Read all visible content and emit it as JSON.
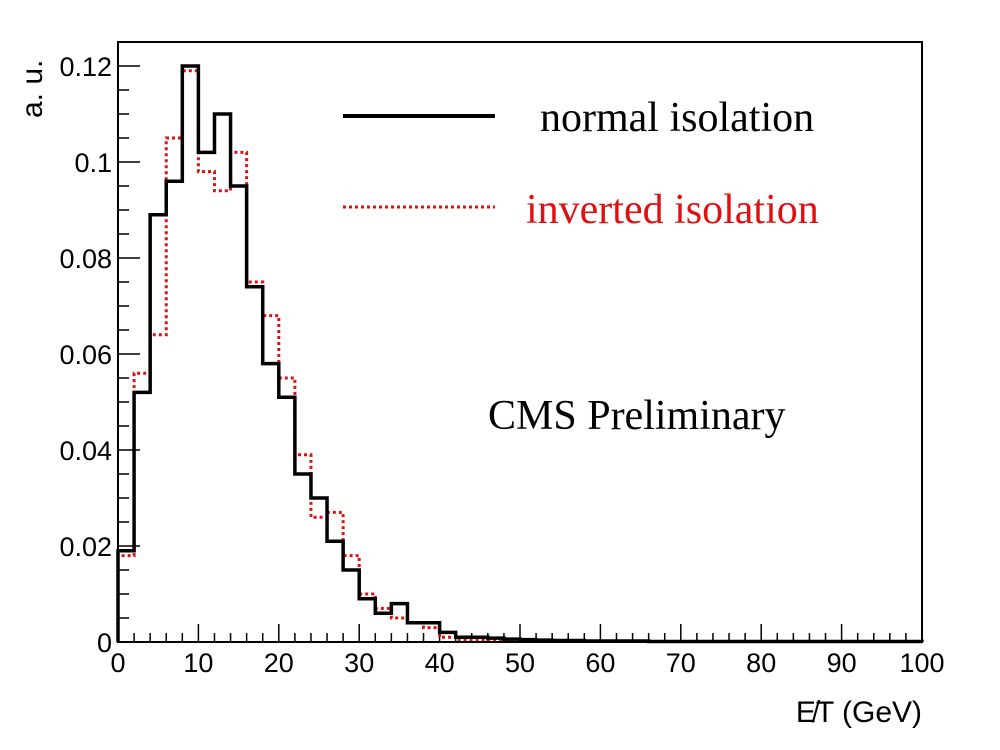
{
  "chart_data": {
    "type": "line",
    "step": true,
    "title": "",
    "xlabel": "E̸T  (GeV)",
    "ylabel": "a. u.",
    "xlim": [
      0,
      100
    ],
    "ylim": [
      0,
      0.125
    ],
    "bin_width": 2,
    "x_ticks": [
      "0",
      "10",
      "20",
      "30",
      "40",
      "50",
      "60",
      "70",
      "80",
      "90",
      "100"
    ],
    "y_ticks": [
      {
        "value": 0,
        "label": "0"
      },
      {
        "value": 0.02,
        "label": "0.02"
      },
      {
        "value": 0.04,
        "label": "0.04"
      },
      {
        "value": 0.06,
        "label": "0.06"
      },
      {
        "value": 0.08,
        "label": "0.08"
      },
      {
        "value": 0.1,
        "label": "0.1"
      },
      {
        "value": 0.12,
        "label": "0.12"
      }
    ],
    "legend_position": "top-right",
    "annotation": "CMS Preliminary",
    "series": [
      {
        "name": "normal isolation",
        "color": "#000000",
        "style": "solid",
        "values": [
          0.019,
          0.052,
          0.089,
          0.096,
          0.12,
          0.102,
          0.11,
          0.095,
          0.074,
          0.058,
          0.051,
          0.035,
          0.03,
          0.021,
          0.015,
          0.009,
          0.006,
          0.008,
          0.004,
          0.004,
          0.002,
          0.001,
          0.001,
          0.0008,
          0.0006,
          0.0005,
          0.0004,
          0.0003,
          0.0003,
          0.0002,
          0.0002,
          0.0002,
          0.0002,
          0.0001,
          0.0001,
          0.0001,
          0.0001,
          0.0001,
          0.0001,
          0.0001,
          0.0001,
          0.0001,
          0.0001,
          0.0001,
          0.0001,
          0.0001,
          0.0001,
          0.0001,
          0.0001,
          0.0001
        ]
      },
      {
        "name": "inverted isolation",
        "color": "#e01010",
        "style": "dotted",
        "values": [
          0.018,
          0.056,
          0.064,
          0.105,
          0.119,
          0.098,
          0.094,
          0.102,
          0.075,
          0.068,
          0.055,
          0.039,
          0.026,
          0.027,
          0.018,
          0.01,
          0.007,
          0.005,
          0.004,
          0.003,
          0.001,
          0.0005,
          0.0005,
          0.0004,
          0.0003,
          0.0003,
          0.0002,
          0.0002,
          0.0002,
          0.0002,
          0.0001,
          0.0001,
          0.0001,
          0.0001,
          0.0001,
          0.0001,
          0.0001,
          0.0001,
          0.0001,
          0.0001,
          0.0001,
          0.0001,
          0.0001,
          0.0001,
          0.0001,
          0.0001,
          0.0001,
          0.0001,
          0.0001,
          0.0001
        ]
      }
    ]
  }
}
